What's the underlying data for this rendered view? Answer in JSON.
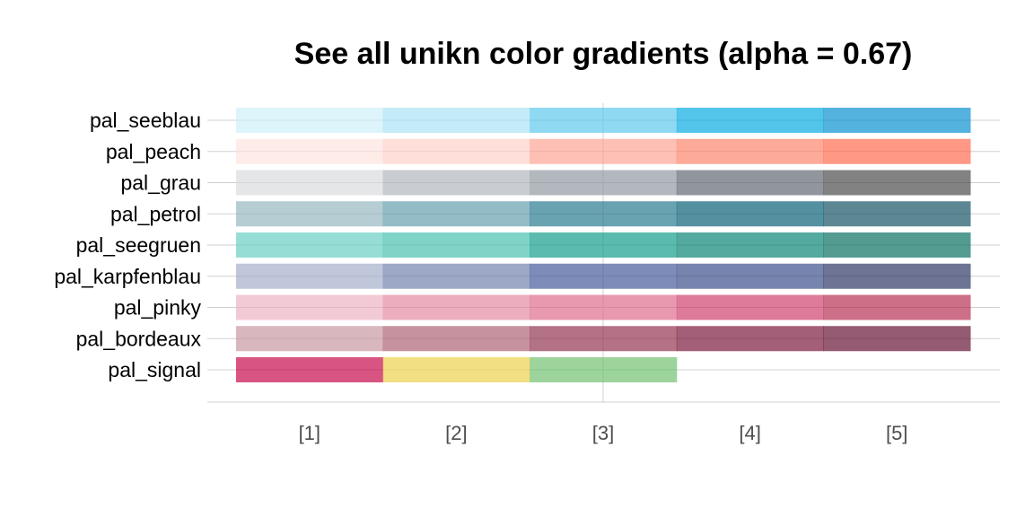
{
  "chart_data": {
    "type": "heatmap",
    "title": "See all unikn color gradients (alpha = 0.67)",
    "xlabel": "",
    "ylabel": "",
    "alpha": 0.67,
    "categories": [
      "[1]",
      "[2]",
      "[3]",
      "[4]",
      "[5]"
    ],
    "grid": true,
    "legend": "none",
    "palettes": [
      {
        "name": "pal_seeblau",
        "colors": [
          "#CCEEF9",
          "#A6E1F4",
          "#59C7EB",
          "#00A9E0",
          "#008ECE"
        ]
      },
      {
        "name": "pal_peach",
        "colors": [
          "#FEE3DE",
          "#FECFC7",
          "#FEA090",
          "#FE8066",
          "#FF6648"
        ]
      },
      {
        "name": "pal_grau",
        "colors": [
          "#D8DADC",
          "#AEB3B9",
          "#8E959F",
          "#5B616B",
          "#444444"
        ]
      },
      {
        "name": "pal_petrol",
        "colors": [
          "#90B5BD",
          "#5F9BAA",
          "#20758A",
          "#005B72",
          "#0E4D5E"
        ]
      },
      {
        "name": "pal_seegruen",
        "colors": [
          "#62CEC0",
          "#40BDAC",
          "#0A9A86",
          "#00806E",
          "#006A5C"
        ]
      },
      {
        "name": "pal_karpfenblau",
        "colors": [
          "#A2ACC8",
          "#6D7CAA",
          "#3E5496",
          "#324886",
          "#262F5F"
        ]
      },
      {
        "name": "pal_pinky",
        "colors": [
          "#ECB0C0",
          "#E386A0",
          "#DC6787",
          "#CF3A68",
          "#B5294C"
        ]
      },
      {
        "name": "pal_bordeaux",
        "colors": [
          "#C7939E",
          "#AB5D70",
          "#8E2C49",
          "#781036",
          "#5F0A2C"
        ]
      },
      {
        "name": "pal_signal",
        "colors": [
          "#C50045",
          "#EBCF46",
          "#6BBF6A"
        ]
      }
    ]
  }
}
